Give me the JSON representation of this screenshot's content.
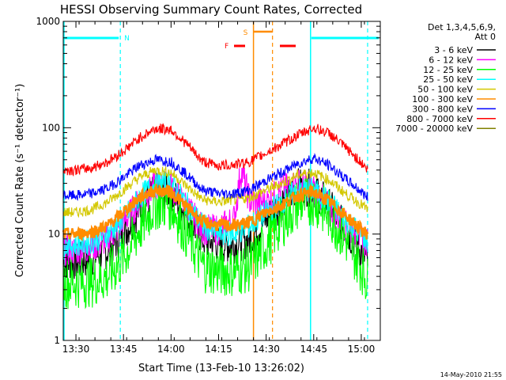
{
  "colors": {
    "background": "#ffffff",
    "axis": "#000000",
    "cyan_lines": "#00ffff",
    "orange_lines": "#ff8c00",
    "flare_marker": "#ff0000"
  },
  "chart_data": {
    "type": "line",
    "title": "HESSI Observing Summary Count Rates, Corrected",
    "xlabel": "Start Time (13-Feb-10 13:26:02)",
    "ylabel": "Corrected Count Rate (s⁻¹ detector⁻¹)",
    "y_scale": "log",
    "ylim": [
      1,
      1000
    ],
    "xlim": [
      "13:26",
      "15:06"
    ],
    "x_ticks": [
      "13:30",
      "13:45",
      "14:00",
      "14:15",
      "14:30",
      "14:45",
      "15:00"
    ],
    "y_ticks": [
      "1",
      "10",
      "100",
      "1000"
    ],
    "legend": {
      "title_line1": "Det 1,3,4,5,6,9,",
      "title_line2": "Att 0",
      "placement": "right"
    },
    "footer_date": "14-May-2010 21:55",
    "markers": {
      "N_label": "N",
      "S_label": "S",
      "F_label": "F",
      "night_boundaries": [
        "13:26",
        "13:44",
        "14:44",
        "15:02"
      ],
      "saa_boundaries": [
        "14:26",
        "14:32"
      ]
    },
    "series": [
      {
        "name": "3 - 6 keV",
        "color": "#000000",
        "x": [
          "13:26",
          "13:30",
          "13:35",
          "13:40",
          "13:45",
          "13:50",
          "13:55",
          "14:00",
          "14:05",
          "14:10",
          "14:15",
          "14:20",
          "14:25",
          "14:30",
          "14:35",
          "14:40",
          "14:45",
          "14:50",
          "14:55",
          "15:00",
          "15:02"
        ],
        "y": [
          5.5,
          5.5,
          6,
          7,
          10,
          17,
          25,
          25,
          15,
          9,
          8,
          8,
          9,
          14,
          20,
          28,
          27,
          18,
          11,
          7,
          5.5
        ]
      },
      {
        "name": "6 - 12 keV",
        "color": "#ff00ff",
        "x": [
          "13:26",
          "13:30",
          "13:35",
          "13:40",
          "13:45",
          "13:50",
          "13:55",
          "14:00",
          "14:05",
          "14:10",
          "14:15",
          "14:20",
          "14:22",
          "14:25",
          "14:30",
          "14:35",
          "14:40",
          "14:45",
          "14:50",
          "14:55",
          "15:00",
          "15:02"
        ],
        "y": [
          7,
          7,
          7.5,
          9,
          13,
          20,
          28,
          28,
          18,
          11,
          11,
          14,
          40,
          20,
          20,
          26,
          30,
          26,
          18,
          12,
          9,
          8
        ]
      },
      {
        "name": "12 - 25 keV",
        "color": "#00ff00",
        "x": [
          "13:26",
          "13:30",
          "13:35",
          "13:40",
          "13:45",
          "13:50",
          "13:55",
          "14:00",
          "14:05",
          "14:10",
          "14:15",
          "14:20",
          "14:25",
          "14:30",
          "14:35",
          "14:40",
          "14:45",
          "14:50",
          "14:55",
          "15:00",
          "15:02"
        ],
        "y": [
          3.5,
          3.5,
          3.6,
          4,
          6,
          11,
          19,
          19,
          10,
          5,
          4.5,
          4.5,
          5,
          8,
          13,
          19,
          21,
          15,
          9,
          5,
          3.5
        ]
      },
      {
        "name": "25 - 50 keV",
        "color": "#00ffff",
        "x": [
          "13:26",
          "13:30",
          "13:35",
          "13:40",
          "13:45",
          "13:50",
          "13:55",
          "14:00",
          "14:05",
          "14:10",
          "14:15",
          "14:20",
          "14:25",
          "14:30",
          "14:35",
          "14:40",
          "14:45",
          "14:50",
          "14:55",
          "15:00",
          "15:02"
        ],
        "y": [
          8,
          8,
          8.5,
          10,
          14,
          22,
          30,
          30,
          19,
          12,
          10,
          10,
          12,
          16,
          20,
          26,
          26,
          20,
          14,
          10,
          8.5
        ]
      },
      {
        "name": "50 - 100 keV",
        "color": "#d4c800",
        "x": [
          "13:26",
          "13:30",
          "13:35",
          "13:40",
          "13:45",
          "13:50",
          "13:55",
          "14:00",
          "14:05",
          "14:10",
          "14:15",
          "14:20",
          "14:25",
          "14:30",
          "14:35",
          "14:40",
          "14:45",
          "14:50",
          "14:55",
          "15:00",
          "15:02"
        ],
        "y": [
          16,
          16,
          17,
          20,
          26,
          34,
          40,
          38,
          28,
          21,
          20,
          21,
          22,
          26,
          30,
          36,
          38,
          32,
          24,
          19,
          17
        ]
      },
      {
        "name": "100 - 300 keV",
        "color": "#ff8c00",
        "x": [
          "13:26",
          "13:30",
          "13:35",
          "13:40",
          "13:45",
          "13:50",
          "13:55",
          "14:00",
          "14:05",
          "14:10",
          "14:15",
          "14:20",
          "14:25",
          "14:30",
          "14:35",
          "14:40",
          "14:45",
          "14:50",
          "14:55",
          "15:00",
          "15:02"
        ],
        "y": [
          10,
          10,
          10.5,
          12,
          16,
          22,
          26,
          25,
          18,
          13,
          12,
          12,
          13,
          16,
          19,
          23,
          25,
          20,
          15,
          11,
          10
        ]
      },
      {
        "name": "300 - 800 keV",
        "color": "#0000ff",
        "x": [
          "13:26",
          "13:30",
          "13:35",
          "13:40",
          "13:45",
          "13:50",
          "13:55",
          "14:00",
          "14:05",
          "14:10",
          "14:15",
          "14:20",
          "14:25",
          "14:30",
          "14:35",
          "14:40",
          "14:45",
          "14:50",
          "14:55",
          "15:00",
          "15:02"
        ],
        "y": [
          23,
          23,
          24,
          27,
          34,
          44,
          50,
          48,
          36,
          26,
          24,
          24,
          26,
          32,
          38,
          46,
          52,
          44,
          33,
          25,
          22
        ]
      },
      {
        "name": "800 - 7000 keV",
        "color": "#ff0000",
        "x": [
          "13:26",
          "13:30",
          "13:35",
          "13:40",
          "13:45",
          "13:50",
          "13:55",
          "14:00",
          "14:05",
          "14:10",
          "14:15",
          "14:20",
          "14:25",
          "14:30",
          "14:35",
          "14:40",
          "14:45",
          "14:50",
          "14:55",
          "15:00",
          "15:02"
        ],
        "y": [
          40,
          40,
          42,
          48,
          60,
          80,
          98,
          96,
          70,
          48,
          44,
          45,
          48,
          58,
          70,
          85,
          100,
          88,
          65,
          47,
          40
        ]
      },
      {
        "name": "7000 - 20000 keV",
        "color": "#808000",
        "x": [],
        "y": []
      }
    ]
  }
}
